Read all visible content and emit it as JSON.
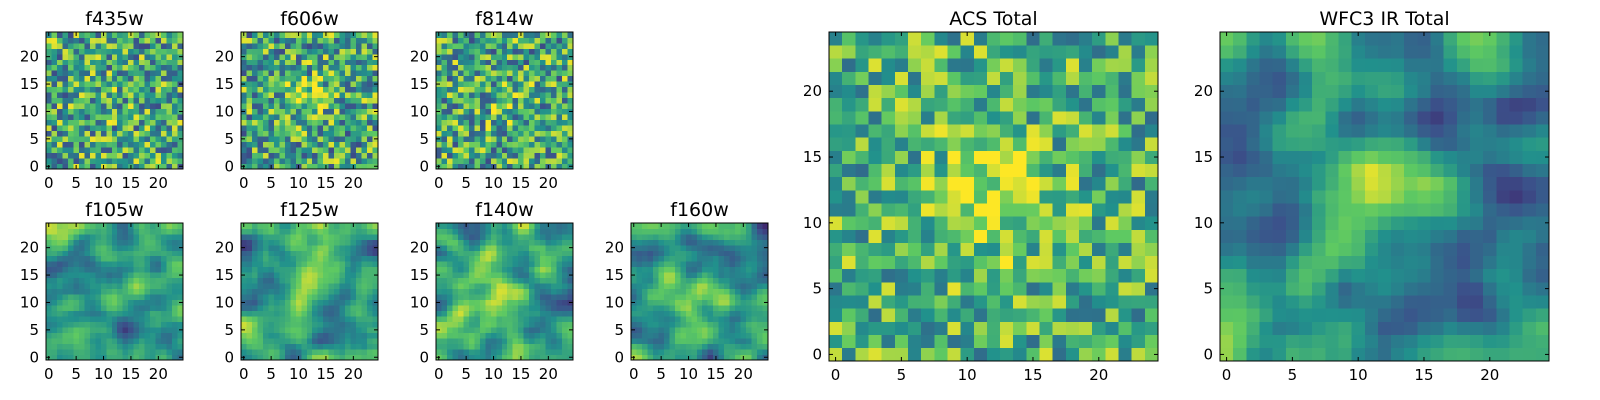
{
  "figure": {
    "background": "#ffffff",
    "colormap": "viridis",
    "colormap_stops": [
      "#440154",
      "#3b528b",
      "#21918c",
      "#5ec962",
      "#fde725"
    ]
  },
  "chart_data": [
    {
      "type": "heatmap",
      "title": "f435w",
      "size": 25,
      "xticks": [
        "0",
        "5",
        "10",
        "15",
        "20"
      ],
      "yticks": [
        "0",
        "5",
        "10",
        "15",
        "20"
      ],
      "xlim": [
        0,
        25
      ],
      "ylim": [
        0,
        25
      ],
      "smoothness": 0,
      "peak": 0.05,
      "noise": 1.0,
      "base": 0.6
    },
    {
      "type": "heatmap",
      "title": "f606w",
      "size": 25,
      "xticks": [
        "0",
        "5",
        "10",
        "15",
        "20"
      ],
      "yticks": [
        "0",
        "5",
        "10",
        "15",
        "20"
      ],
      "xlim": [
        0,
        25
      ],
      "ylim": [
        0,
        25
      ],
      "smoothness": 0,
      "peak": 0.15,
      "noise": 1.0,
      "base": 0.6
    },
    {
      "type": "heatmap",
      "title": "f814w",
      "size": 25,
      "xticks": [
        "0",
        "5",
        "10",
        "15",
        "20"
      ],
      "yticks": [
        "0",
        "5",
        "10",
        "15",
        "20"
      ],
      "xlim": [
        0,
        25
      ],
      "ylim": [
        0,
        25
      ],
      "smoothness": 0,
      "peak": 0.1,
      "noise": 1.0,
      "base": 0.6
    },
    {
      "type": "heatmap",
      "title": "f105w",
      "size": 25,
      "xticks": [
        "0",
        "5",
        "10",
        "15",
        "20"
      ],
      "yticks": [
        "0",
        "5",
        "10",
        "15",
        "20"
      ],
      "xlim": [
        0,
        25
      ],
      "ylim": [
        0,
        25
      ],
      "smoothness": 2,
      "peak": 0.15,
      "noise": 1.0,
      "base": 0.55
    },
    {
      "type": "heatmap",
      "title": "f125w",
      "size": 25,
      "xticks": [
        "0",
        "5",
        "10",
        "15",
        "20"
      ],
      "yticks": [
        "0",
        "5",
        "10",
        "15",
        "20"
      ],
      "xlim": [
        0,
        25
      ],
      "ylim": [
        0,
        25
      ],
      "smoothness": 2,
      "peak": 0.25,
      "noise": 1.0,
      "base": 0.55
    },
    {
      "type": "heatmap",
      "title": "f140w",
      "size": 25,
      "xticks": [
        "0",
        "5",
        "10",
        "15",
        "20"
      ],
      "yticks": [
        "0",
        "5",
        "10",
        "15",
        "20"
      ],
      "xlim": [
        0,
        25
      ],
      "ylim": [
        0,
        25
      ],
      "smoothness": 2,
      "peak": 0.35,
      "noise": 1.0,
      "base": 0.55
    },
    {
      "type": "heatmap",
      "title": "f160w",
      "size": 25,
      "xticks": [
        "0",
        "5",
        "10",
        "15",
        "20"
      ],
      "yticks": [
        "0",
        "5",
        "10",
        "15",
        "20"
      ],
      "xlim": [
        0,
        25
      ],
      "ylim": [
        0,
        25
      ],
      "smoothness": 2,
      "peak": 0.35,
      "noise": 1.0,
      "base": 0.5
    },
    {
      "type": "heatmap",
      "title": "ACS Total",
      "size": 25,
      "xticks": [
        "0",
        "5",
        "10",
        "15",
        "20"
      ],
      "yticks": [
        "0",
        "5",
        "10",
        "15",
        "20"
      ],
      "xlim": [
        0,
        25
      ],
      "ylim": [
        0,
        25
      ],
      "smoothness": 0,
      "peak": 0.3,
      "noise": 0.8,
      "base": 0.65
    },
    {
      "type": "heatmap",
      "title": "WFC3 IR Total",
      "size": 25,
      "xticks": [
        "0",
        "5",
        "10",
        "15",
        "20"
      ],
      "yticks": [
        "0",
        "5",
        "10",
        "15",
        "20"
      ],
      "xlim": [
        0,
        25
      ],
      "ylim": [
        0,
        25
      ],
      "smoothness": 2,
      "peak": 0.5,
      "noise": 0.9,
      "base": 0.5
    }
  ]
}
